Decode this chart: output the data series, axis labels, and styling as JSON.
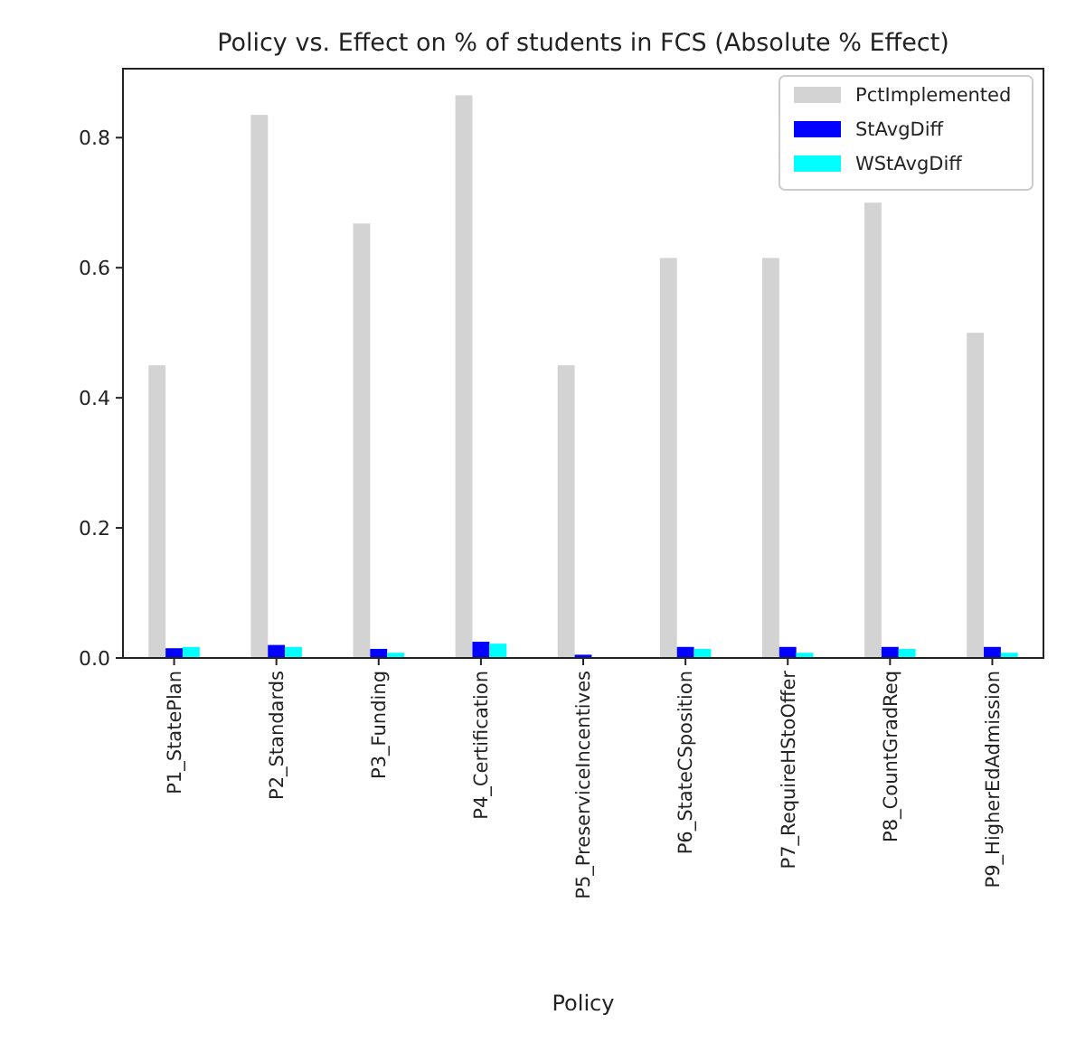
{
  "chart_data": {
    "type": "bar",
    "title": "Policy vs. Effect on % of students in FCS (Absolute % Effect)",
    "xlabel": "Policy",
    "categories": [
      "P1_StatePlan",
      "P2_Standards",
      "P3_Funding",
      "P4_Certification",
      "P5_PreserviceIncentives",
      "P6_StateCSposition",
      "P7_RequireHStoOffer",
      "P8_CountGradReq",
      "P9_HigherEdAdmission"
    ],
    "series": [
      {
        "name": "PctImplemented",
        "color": "#d3d3d3",
        "values": [
          0.45,
          0.835,
          0.668,
          0.865,
          0.45,
          0.615,
          0.615,
          0.7,
          0.5
        ]
      },
      {
        "name": "StAvgDiff",
        "color": "#0000ff",
        "values": [
          0.015,
          0.02,
          0.014,
          0.025,
          0.005,
          0.017,
          0.017,
          0.017,
          0.017
        ]
      },
      {
        "name": "WStAvgDiff",
        "color": "#00ffff",
        "values": [
          0.017,
          0.017,
          0.008,
          0.022,
          null,
          0.014,
          0.008,
          0.014,
          0.008
        ]
      }
    ],
    "ylim": [
      0,
      0.906
    ],
    "yticks": [
      {
        "value": 0,
        "label": "0.0"
      },
      {
        "value": 0.2,
        "label": "0.2"
      },
      {
        "value": 0.4,
        "label": "0.4"
      },
      {
        "value": 0.6,
        "label": "0.6"
      },
      {
        "value": 0.8,
        "label": "0.8"
      }
    ],
    "grid": false,
    "legend": "top right"
  }
}
